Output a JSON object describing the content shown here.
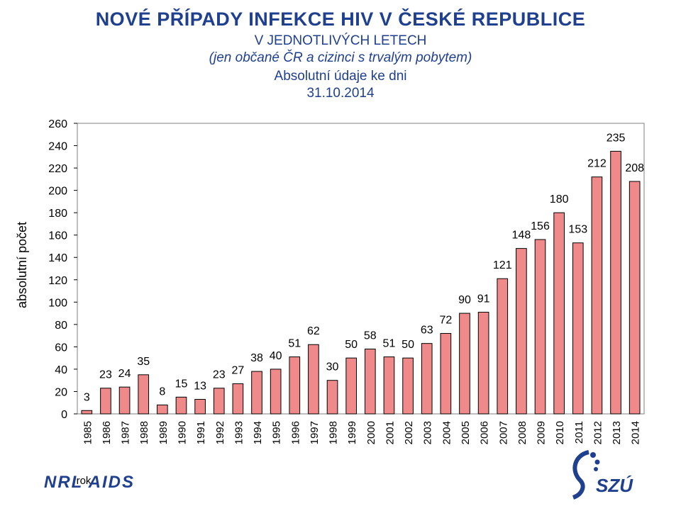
{
  "header": {
    "title": "NOVÉ PŘÍPADY INFEKCE HIV V ČESKÉ REPUBLICE",
    "subtitle": "V JEDNOTLIVÝCH LETECH",
    "subtitle_note": "(jen občané ČR a cizinci s trvalým pobytem)",
    "subtitle_abs": "Absolutní údaje ke dni",
    "date": "31.10.2014"
  },
  "footer": {
    "left_logo_text": "NRL AIDS",
    "rok_label": "rok",
    "right_logo_text": "SZÚ"
  },
  "colors": {
    "bar_fill": "#f08a8a",
    "bar_stroke": "#000000",
    "title": "#1f3f8f"
  },
  "chart_data": {
    "type": "bar",
    "title": "NOVÉ PŘÍPADY INFEKCE HIV V ČESKÉ REPUBLICE",
    "ylabel": "absolutní počet",
    "xlabel": "rok",
    "ylim": [
      0,
      260
    ],
    "yticks": [
      0,
      20,
      40,
      60,
      80,
      100,
      120,
      140,
      160,
      180,
      200,
      220,
      240,
      260
    ],
    "grid": false,
    "categories": [
      "1985",
      "1986",
      "1987",
      "1988",
      "1989",
      "1990",
      "1991",
      "1992",
      "1993",
      "1994",
      "1995",
      "1996",
      "1997",
      "1998",
      "1999",
      "2000",
      "2001",
      "2002",
      "2003",
      "2004",
      "2005",
      "2006",
      "2007",
      "2008",
      "2009",
      "2010",
      "2011",
      "2012",
      "2013",
      "2014"
    ],
    "values": [
      3,
      23,
      24,
      35,
      8,
      15,
      13,
      23,
      27,
      38,
      40,
      51,
      62,
      30,
      50,
      58,
      51,
      50,
      63,
      72,
      90,
      91,
      121,
      148,
      156,
      180,
      153,
      212,
      235,
      208
    ]
  }
}
